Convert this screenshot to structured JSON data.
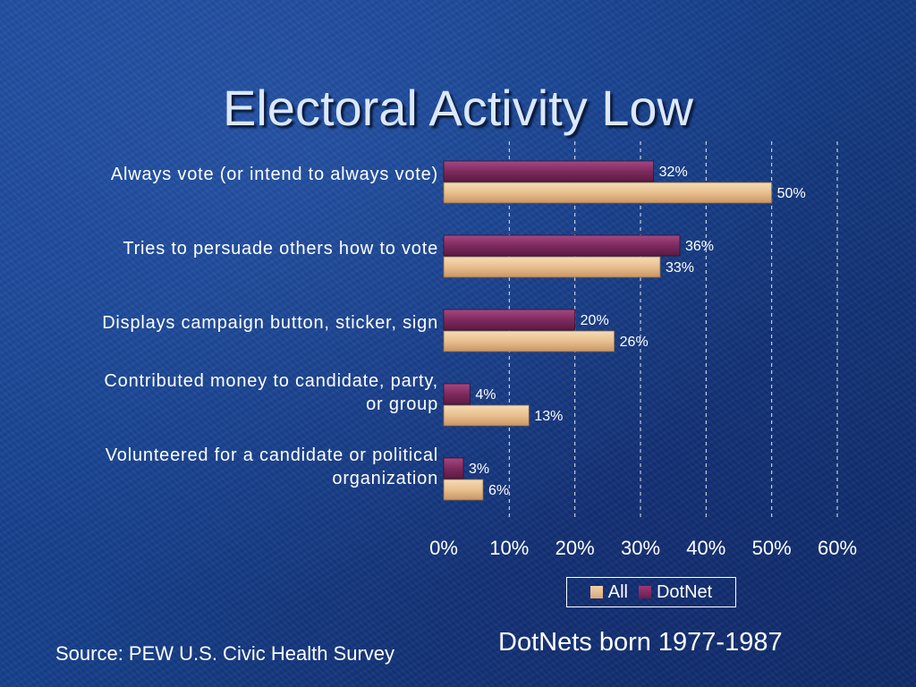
{
  "slide": {
    "title": "Electoral Activity Low",
    "footnote": "DotNets born 1977-1987",
    "source": "Source: PEW U.S. Civic Health Survey"
  },
  "colors": {
    "all": "#e8bf8e",
    "dotnet": "#7e2a5f",
    "text": "#ffffff"
  },
  "chart_data": {
    "type": "bar",
    "orientation": "horizontal",
    "title": "",
    "xlabel": "",
    "ylabel": "",
    "xlim": [
      0,
      60
    ],
    "xticks": [
      "0%",
      "10%",
      "20%",
      "30%",
      "40%",
      "50%",
      "60%"
    ],
    "grid": "vertical dashed",
    "legend_placement": "bottom-center",
    "categories": [
      [
        "Always vote (or intend to always vote)"
      ],
      [
        "Tries to persuade others how to vote"
      ],
      [
        "Displays campaign button, sticker, sign"
      ],
      [
        "Contributed money to candidate, party,",
        "or group"
      ],
      [
        "Volunteered for a candidate or political",
        "organization"
      ]
    ],
    "series": [
      {
        "name": "DotNet",
        "values": [
          32,
          36,
          20,
          4,
          3
        ],
        "labels": [
          "32%",
          "36%",
          "20%",
          "4%",
          "3%"
        ]
      },
      {
        "name": "All",
        "values": [
          50,
          33,
          26,
          13,
          6
        ],
        "labels": [
          "50%",
          "33%",
          "26%",
          "13%",
          "6%"
        ]
      }
    ],
    "legend": [
      "All",
      "DotNet"
    ]
  }
}
